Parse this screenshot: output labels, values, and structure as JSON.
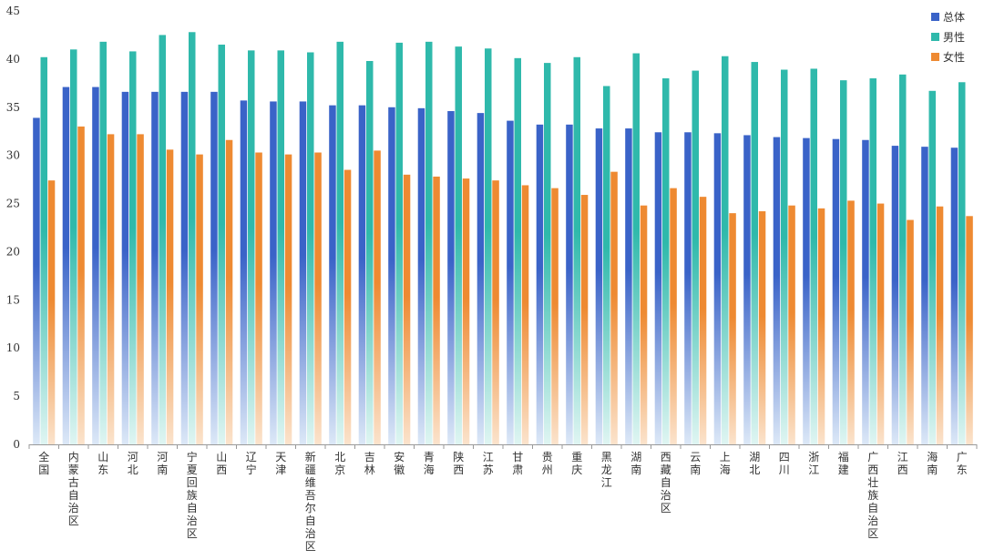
{
  "colors": {
    "total": "#3a63c8",
    "total_light": "#dce8f7",
    "male": "#2fb9ab",
    "male_light": "#dff5f2",
    "female": "#ee8a32",
    "female_light": "#fbe3cc",
    "axis": "#999999"
  },
  "chart_data": {
    "type": "bar",
    "title": "",
    "xlabel": "",
    "ylabel": "",
    "ylim": [
      0,
      45
    ],
    "yticks": [
      0,
      5,
      10,
      15,
      20,
      25,
      30,
      35,
      40,
      45
    ],
    "legend_position": "top-right",
    "grid": false,
    "categories": [
      "全国",
      "内蒙古自治区",
      "山东",
      "河北",
      "河南",
      "宁夏回族自治区",
      "山西",
      "辽宁",
      "天津",
      "新疆维吾尔自治区",
      "北京",
      "吉林",
      "安徽",
      "青海",
      "陕西",
      "江苏",
      "甘肃",
      "贵州",
      "重庆",
      "黑龙江",
      "湖南",
      "西藏自治区",
      "云南",
      "上海",
      "湖北",
      "四川",
      "浙江",
      "福建",
      "广西壮族自治区",
      "江西",
      "海南",
      "广东"
    ],
    "series": [
      {
        "name": "总体",
        "color_key": "total",
        "values": [
          33.9,
          37.1,
          37.1,
          36.6,
          36.6,
          36.6,
          36.6,
          35.7,
          35.6,
          35.6,
          35.2,
          35.2,
          35.0,
          34.9,
          34.6,
          34.4,
          33.6,
          33.2,
          33.2,
          32.8,
          32.8,
          32.4,
          32.4,
          32.3,
          32.1,
          31.9,
          31.8,
          31.7,
          31.6,
          31.0,
          30.9,
          30.8
        ]
      },
      {
        "name": "男性",
        "color_key": "male",
        "values": [
          40.2,
          41.0,
          41.8,
          40.8,
          42.5,
          42.8,
          41.5,
          40.9,
          40.9,
          40.7,
          41.8,
          39.8,
          41.7,
          41.8,
          41.3,
          41.1,
          40.1,
          39.6,
          40.2,
          37.2,
          40.6,
          38.0,
          38.8,
          40.3,
          39.7,
          38.9,
          39.0,
          37.8,
          38.0,
          38.4,
          36.7,
          37.6
        ]
      },
      {
        "name": "女性",
        "color_key": "female",
        "values": [
          27.4,
          33.0,
          32.2,
          32.2,
          30.6,
          30.1,
          31.6,
          30.3,
          30.1,
          30.3,
          28.5,
          30.5,
          28.0,
          27.8,
          27.6,
          27.4,
          26.9,
          26.6,
          25.9,
          28.3,
          24.8,
          26.6,
          25.7,
          24.0,
          24.2,
          24.8,
          24.5,
          25.3,
          25.0,
          23.3,
          24.7,
          23.7
        ]
      }
    ]
  }
}
